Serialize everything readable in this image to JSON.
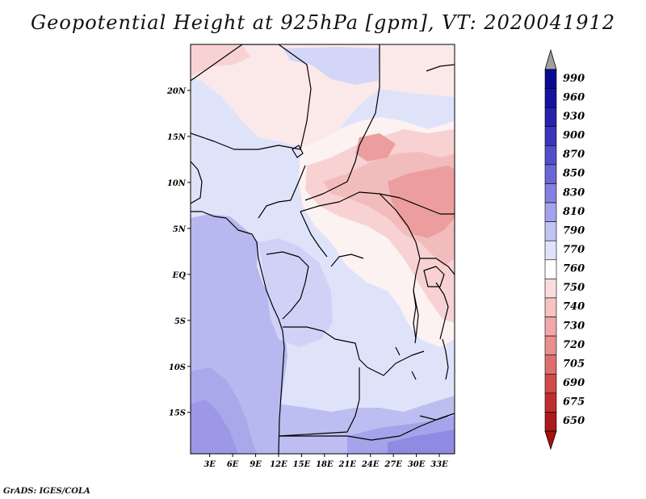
{
  "title": "Geopotential Height at 925hPa [gpm], VT: 2020041912",
  "credit": "GrADS: IGES/COLA",
  "map": {
    "lat_labels": [
      "20N",
      "15N",
      "10N",
      "5N",
      "EQ",
      "5S",
      "10S",
      "15S"
    ],
    "lat_values": [
      20,
      15,
      10,
      5,
      0,
      -5,
      -10,
      -15
    ],
    "lon_labels": [
      "3E",
      "6E",
      "9E",
      "12E",
      "15E",
      "18E",
      "21E",
      "24E",
      "27E",
      "30E",
      "33E"
    ],
    "lon_values": [
      3,
      6,
      9,
      12,
      15,
      18,
      21,
      24,
      27,
      30,
      33
    ]
  },
  "colorbar": {
    "levels": [
      "990",
      "960",
      "930",
      "900",
      "870",
      "850",
      "830",
      "810",
      "790",
      "770",
      "760",
      "750",
      "740",
      "730",
      "720",
      "705",
      "690",
      "675",
      "650"
    ],
    "colors": [
      "#0a0a90",
      "#16149e",
      "#2622ac",
      "#3a36ba",
      "#5250c8",
      "#6a66d4",
      "#8480e0",
      "#a4a2ec",
      "#c2c4f4",
      "#dfe3fa",
      "#ffffff",
      "#fbdcdc",
      "#f6c2c2",
      "#f0a8a8",
      "#e78e8e",
      "#de6e6e",
      "#d04a4a",
      "#be2e2e",
      "#aa1a1a"
    ],
    "top_arrow_color": "#a0a0a0",
    "bottom_arrow_color": "#a80f0f"
  }
}
